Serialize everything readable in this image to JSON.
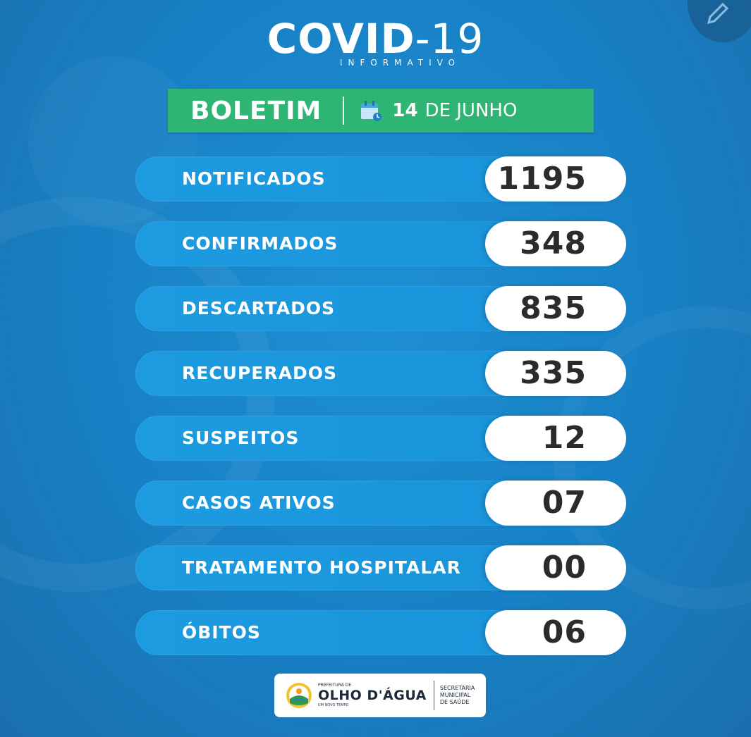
{
  "header": {
    "title_bold": "COVID",
    "title_num": "-19",
    "subtitle": "INFORMATIVO"
  },
  "bulletin": {
    "label": "BOLETIM",
    "date_day": "14",
    "date_month": "DE JUNHO"
  },
  "stats": [
    {
      "label": "NOTIFICADOS",
      "value": "1195"
    },
    {
      "label": "CONFIRMADOS",
      "value": "348"
    },
    {
      "label": "DESCARTADOS",
      "value": "835"
    },
    {
      "label": "RECUPERADOS",
      "value": "335"
    },
    {
      "label": "SUSPEITOS",
      "value": "12"
    },
    {
      "label": "CASOS ATIVOS",
      "value": "07"
    },
    {
      "label": "TRATAMENTO HOSPITALAR",
      "value": "00"
    },
    {
      "label": "ÓBITOS",
      "value": "06"
    }
  ],
  "footer": {
    "prefeitura": "PREFEITURA DE",
    "city": "OLHO D'ÁGUA",
    "tagline": "UM NOVO TEMPO",
    "secretaria_line1": "SECRETARIA",
    "secretaria_line2": "MUNICIPAL",
    "secretaria_line3": "DE SAÚDE"
  },
  "colors": {
    "background": "#1880c4",
    "pill": "#1d9be0",
    "banner_green": "#2fb573",
    "value_text": "#2b2b2b"
  },
  "icons": {
    "calendar": "calendar-icon",
    "edit": "pencil-icon",
    "virus": "virus-icon"
  }
}
